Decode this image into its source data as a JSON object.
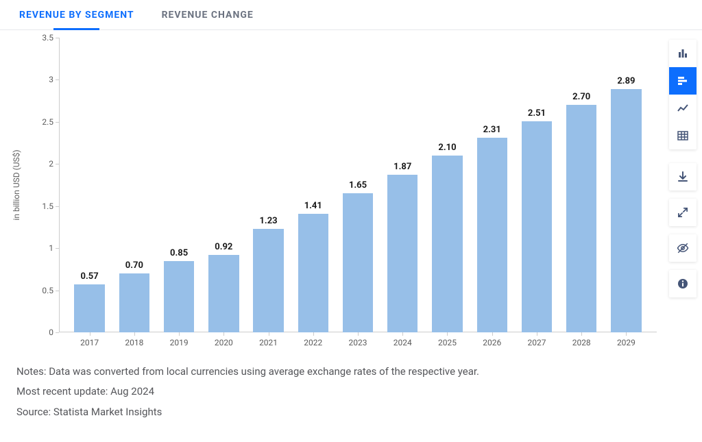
{
  "tabs": [
    {
      "label": "REVENUE BY SEGMENT",
      "active": true
    },
    {
      "label": "REVENUE CHANGE",
      "active": false
    }
  ],
  "chart": {
    "type": "bar",
    "y_label": "in billion USD (US$)",
    "y_label_fontsize": 12,
    "ylim": [
      0,
      3.5
    ],
    "ytick_step": 0.5,
    "y_ticks": [
      "0",
      "0.5",
      "1",
      "1.5",
      "2",
      "2.5",
      "3",
      "3.5"
    ],
    "categories": [
      "2017",
      "2018",
      "2019",
      "2020",
      "2021",
      "2022",
      "2023",
      "2024",
      "2025",
      "2026",
      "2027",
      "2028",
      "2029"
    ],
    "values": [
      0.57,
      0.7,
      0.85,
      0.92,
      1.23,
      1.41,
      1.65,
      1.87,
      2.1,
      2.31,
      2.51,
      2.7,
      2.89
    ],
    "value_labels": [
      "0.57",
      "0.70",
      "0.85",
      "0.92",
      "1.23",
      "1.41",
      "1.65",
      "1.87",
      "2.10",
      "2.31",
      "2.51",
      "2.70",
      "2.89"
    ],
    "bar_color": "#97bfe8",
    "axis_color": "#cccccc",
    "tick_text_color": "#5b5b5b",
    "value_label_fontsize": 13,
    "value_label_weight": 700,
    "background_color": "#ffffff",
    "bar_width_ratio": 0.68
  },
  "notes": {
    "line1": "Notes: Data was converted from local currencies using average exchange rates of the respective year.",
    "line2": "Most recent update: Aug 2024",
    "line3": "Source: Statista Market Insights"
  },
  "toolbar": {
    "group1": [
      {
        "name": "column-chart-icon",
        "active": false
      },
      {
        "name": "bar-chart-icon",
        "active": true
      },
      {
        "name": "line-chart-icon",
        "active": false
      },
      {
        "name": "table-icon",
        "active": false
      }
    ],
    "group2": [
      {
        "name": "download-icon"
      },
      {
        "name": "fullscreen-icon"
      },
      {
        "name": "hide-icon"
      },
      {
        "name": "info-icon"
      }
    ],
    "active_bg": "#0d6efd",
    "icon_color": "#455577"
  }
}
